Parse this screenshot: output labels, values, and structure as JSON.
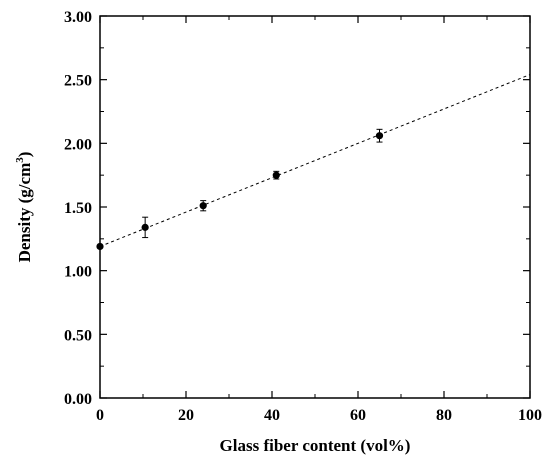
{
  "chart_data": {
    "type": "scatter",
    "title": "",
    "xlabel": "Glass fiber content (vol%)",
    "ylabel_main": "Density (g/cm",
    "ylabel_sup": "3",
    "ylabel_end": ")",
    "xlim": [
      0,
      100
    ],
    "ylim": [
      0,
      3
    ],
    "xticks": [
      0,
      20,
      40,
      60,
      80,
      100
    ],
    "xtick_labels": [
      "0",
      "20",
      "40",
      "60",
      "80",
      "100"
    ],
    "yticks": [
      0,
      0.5,
      1,
      1.5,
      2,
      2.5,
      3
    ],
    "ytick_labels": [
      "0.00",
      "0.50",
      "1.00",
      "1.50",
      "2.00",
      "2.50",
      "3.00"
    ],
    "grid": false,
    "legend": "none",
    "series": [
      {
        "points": [
          {
            "x": 0,
            "y": 1.19,
            "err": 0
          },
          {
            "x": 10.5,
            "y": 1.34,
            "err": 0.08
          },
          {
            "x": 24,
            "y": 1.51,
            "err": 0.04
          },
          {
            "x": 41,
            "y": 1.75,
            "err": 0.03
          },
          {
            "x": 65,
            "y": 2.06,
            "err": 0.05
          }
        ]
      }
    ],
    "fit_line": {
      "style": "dashed",
      "x": [
        0,
        100
      ],
      "y": [
        1.19,
        2.54
      ]
    }
  }
}
